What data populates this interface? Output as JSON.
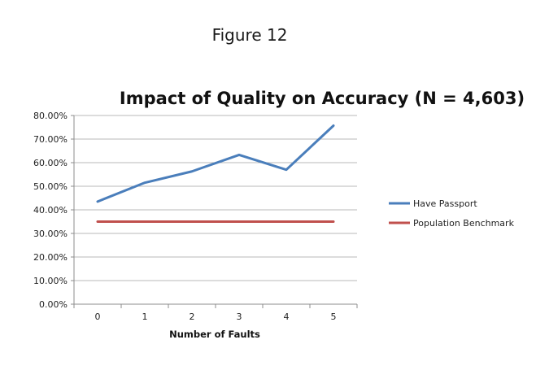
{
  "figure_label": "Figure 12",
  "chart_data": {
    "type": "line",
    "title": "Impact of Quality on Accuracy (N = 4,603)",
    "xlabel": "Number of Faults",
    "ylabel": "",
    "categories": [
      "0",
      "1",
      "2",
      "3",
      "4",
      "5"
    ],
    "ylim": [
      0,
      80
    ],
    "yticks": [
      "0.00%",
      "10.00%",
      "20.00%",
      "30.00%",
      "40.00%",
      "50.00%",
      "60.00%",
      "70.00%",
      "80.00%"
    ],
    "grid": true,
    "legend_position": "right",
    "series": [
      {
        "name": "Have Passport",
        "values": [
          43.5,
          51.5,
          56.3,
          63.3,
          57.0,
          75.7
        ],
        "color": "#4a7ebb"
      },
      {
        "name": "Population Benchmark",
        "values": [
          35.0,
          35.0,
          35.0,
          35.0,
          35.0,
          35.0
        ],
        "color": "#c0504d"
      }
    ]
  }
}
